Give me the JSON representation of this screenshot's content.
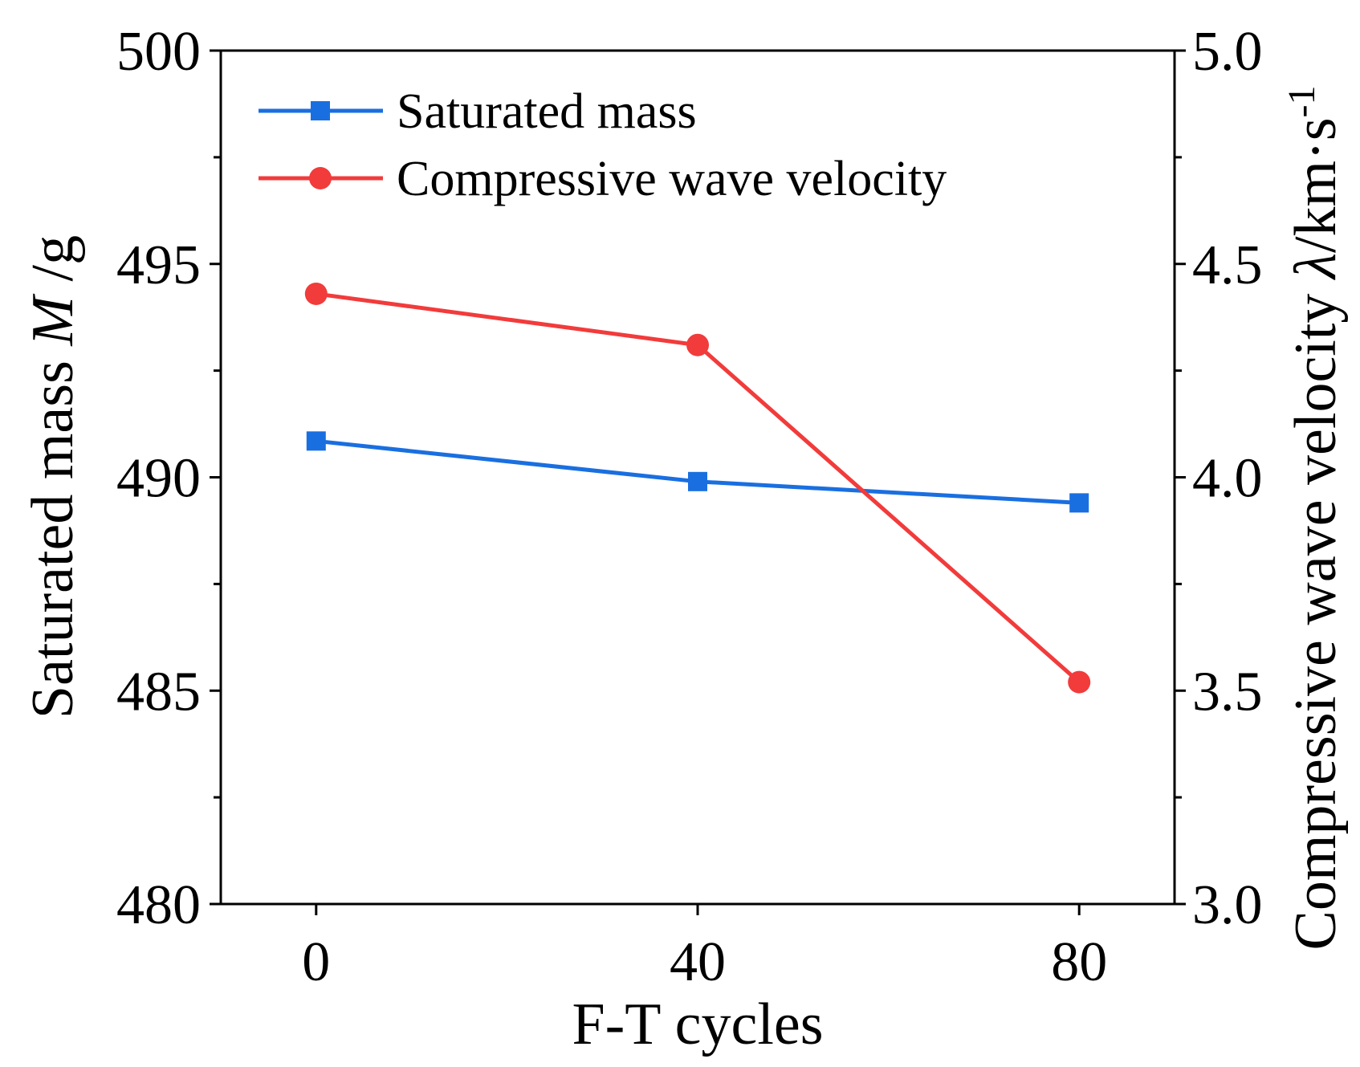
{
  "chart_data": {
    "type": "line",
    "categories": [
      "0",
      "40",
      "80"
    ],
    "x": [
      0,
      40,
      80
    ],
    "xlim": [
      -10,
      90
    ],
    "xticks": [
      0,
      40,
      80
    ],
    "xlabel": "F-T cycles",
    "ylabel_left": {
      "pre": "Saturated mass ",
      "var": "M",
      "post": " /g"
    },
    "ylim_left": [
      480,
      500
    ],
    "yticks_left": [
      "480",
      "485",
      "490",
      "495",
      "500"
    ],
    "ylabel_right": {
      "pre": "Compressive wave velocity ",
      "var": "λ",
      "post": "/km·s",
      "sup": "-1"
    },
    "ylim_right": [
      3.0,
      5.0
    ],
    "yticks_right": [
      "3.0",
      "3.5",
      "4.0",
      "4.5",
      "5.0"
    ],
    "series": [
      {
        "name": "Saturated mass",
        "axis": "left",
        "marker": "square",
        "color": "#1a6fe0",
        "values": [
          490.85,
          489.9,
          489.4
        ]
      },
      {
        "name": "Compressive wave velocity",
        "axis": "right",
        "marker": "circle",
        "color": "#f23b3b",
        "values": [
          4.43,
          4.31,
          3.52
        ]
      }
    ],
    "legend_position": "top-left"
  }
}
